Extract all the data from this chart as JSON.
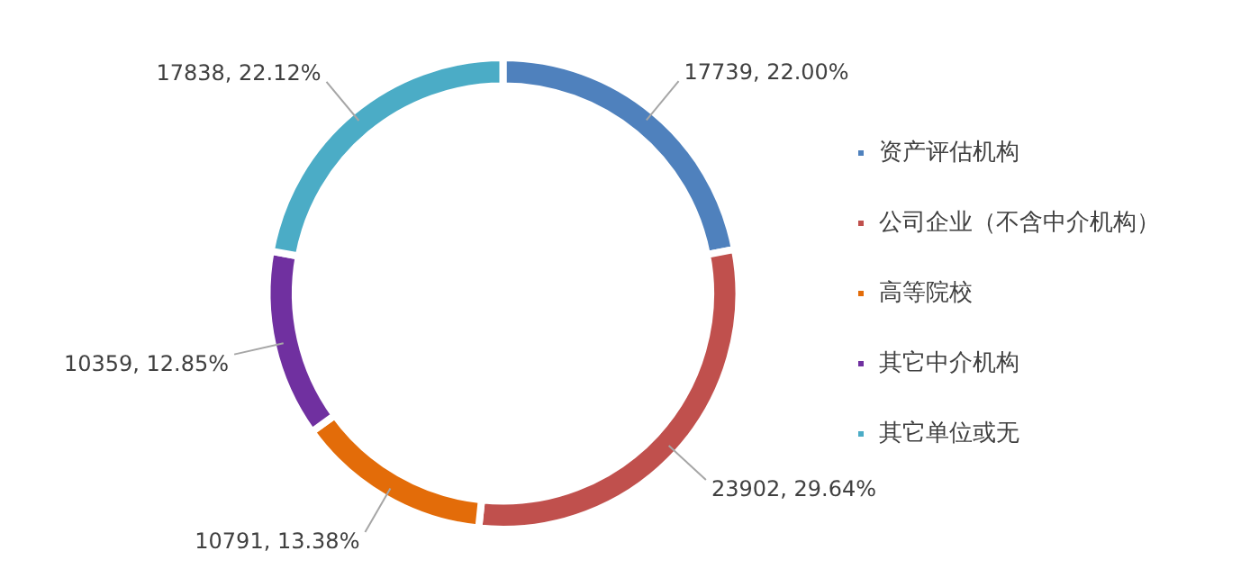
{
  "chart_data": {
    "type": "donut",
    "categories": [
      "资产评估机构",
      "公司企业（不含中介机构）",
      "高等院校",
      "其它中介机构",
      "其它单位或无"
    ],
    "values": [
      17739,
      23902,
      10791,
      10359,
      17838
    ],
    "colors": [
      "#4f81bd",
      "#c0504d",
      "#e36c09",
      "#7030a0",
      "#4bacc6"
    ],
    "value_labels": [
      "17739, 22.00%",
      "23902, 29.64%",
      "10791, 13.38%",
      "10359, 12.85%",
      "17838, 22.12%"
    ],
    "legend": "right"
  }
}
